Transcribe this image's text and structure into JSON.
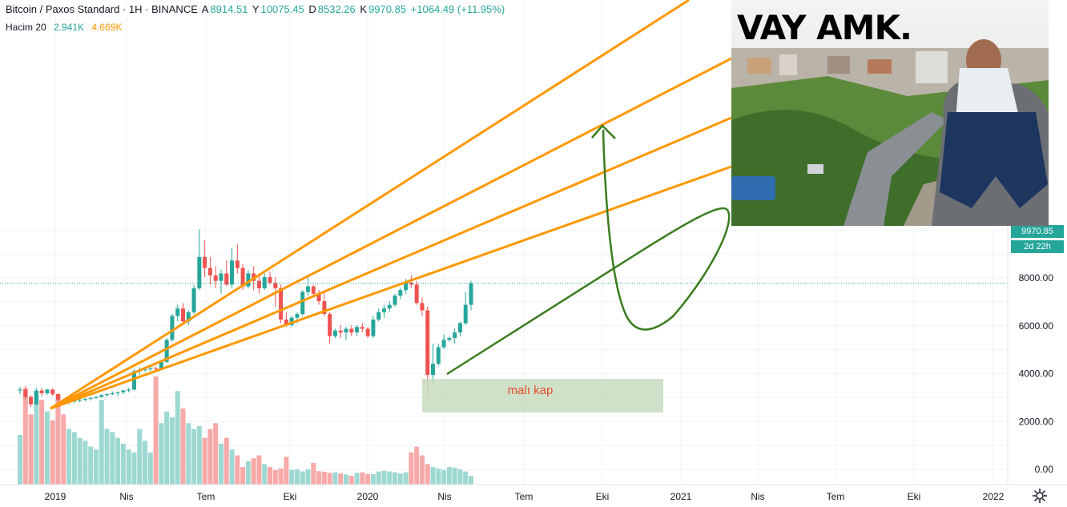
{
  "header": {
    "symbol": "Bitcoin / Paxos Standard · 1H · BINANCE",
    "open_key": "A",
    "open": "8914.51",
    "high_key": "Y",
    "high": "10075.45",
    "low_key": "D",
    "low": "8532.26",
    "close_key": "K",
    "close": "9970.85",
    "change": "+1064.49 (+11.95%)",
    "volume_label": "Hacim 20",
    "volume_value": "2.941K",
    "volume_ma": "4.669K"
  },
  "price_tag": {
    "price": "9970.85",
    "countdown": "2d 22h"
  },
  "annotation": {
    "text": "malı kap"
  },
  "meme": {
    "title": "VAY AMK."
  },
  "colors": {
    "up": "#26a69a",
    "down": "#ef5350",
    "fan": "#ff9800",
    "arrow": "#3a7d1e",
    "box": "#c8dcc0",
    "annotation_text": "#e04c2c"
  },
  "chart_data": {
    "type": "candlestick",
    "title": "Bitcoin / Paxos Standard · 1H · BINANCE",
    "ylim": [
      -700,
      10500
    ],
    "y_ticks": [
      0,
      2000,
      4000,
      6000,
      8000
    ],
    "y_tick_labels": [
      "0.00",
      "2000.00",
      "4000.00",
      "6000.00",
      "8000.00"
    ],
    "x_ticks": [
      "2019",
      "Nis",
      "Tem",
      "Eki",
      "2020",
      "Nis",
      "Tem",
      "Eki",
      "2021",
      "Nis",
      "Tem",
      "Eki",
      "2022"
    ],
    "last_price": 9970.85,
    "candles": [
      [
        4150,
        4350,
        3950,
        4200
      ],
      [
        4200,
        4400,
        3700,
        3800
      ],
      [
        3800,
        3900,
        3250,
        3400
      ],
      [
        3400,
        4300,
        3350,
        4150
      ],
      [
        4150,
        4300,
        3850,
        4000
      ],
      [
        4000,
        4250,
        3900,
        4200
      ],
      [
        4200,
        4250,
        3850,
        3950
      ],
      [
        3950,
        4000,
        3550,
        3650
      ],
      [
        3650,
        3700,
        3400,
        3500
      ],
      [
        3500,
        3650,
        3400,
        3550
      ],
      [
        3550,
        3700,
        3450,
        3600
      ],
      [
        3600,
        3700,
        3500,
        3650
      ],
      [
        3650,
        3750,
        3550,
        3700
      ],
      [
        3700,
        3800,
        3600,
        3750
      ],
      [
        3750,
        3850,
        3700,
        3800
      ],
      [
        3800,
        3950,
        3750,
        3900
      ],
      [
        3900,
        4000,
        3800,
        3950
      ],
      [
        3950,
        4100,
        3900,
        4000
      ],
      [
        4000,
        4100,
        3850,
        4050
      ],
      [
        4050,
        4200,
        3950,
        4150
      ],
      [
        4150,
        4300,
        4050,
        4200
      ],
      [
        4200,
        5300,
        4150,
        5200
      ],
      [
        5200,
        5400,
        5000,
        5250
      ],
      [
        5250,
        5400,
        5150,
        5300
      ],
      [
        5300,
        5450,
        5200,
        5350
      ],
      [
        5350,
        5450,
        5200,
        5300
      ],
      [
        5300,
        5800,
        5250,
        5700
      ],
      [
        5700,
        7000,
        5650,
        6900
      ],
      [
        6900,
        8300,
        6800,
        8200
      ],
      [
        8200,
        8800,
        7900,
        8600
      ],
      [
        8600,
        8900,
        7700,
        7900
      ],
      [
        7900,
        8500,
        7700,
        8400
      ],
      [
        8400,
        9900,
        8300,
        9700
      ],
      [
        9700,
        12900,
        9600,
        11400
      ],
      [
        11400,
        12300,
        10300,
        10800
      ],
      [
        10800,
        11400,
        9900,
        10400
      ],
      [
        10400,
        10900,
        9700,
        10100
      ],
      [
        10100,
        10700,
        9400,
        10500
      ],
      [
        10500,
        11200,
        9800,
        9900
      ],
      [
        9900,
        11900,
        9700,
        11200
      ],
      [
        11200,
        12100,
        10500,
        10800
      ],
      [
        10800,
        11000,
        9600,
        9800
      ],
      [
        9800,
        10700,
        9700,
        10500
      ],
      [
        10500,
        10900,
        9600,
        10100
      ],
      [
        10100,
        10400,
        9400,
        9700
      ],
      [
        9700,
        10500,
        9600,
        10300
      ],
      [
        10300,
        10600,
        9900,
        10000
      ],
      [
        10000,
        10300,
        8700,
        9700
      ],
      [
        9700,
        9900,
        7800,
        8000
      ],
      [
        8000,
        8400,
        7600,
        7700
      ],
      [
        7700,
        8200,
        7600,
        8100
      ],
      [
        8100,
        8400,
        7800,
        8300
      ],
      [
        8300,
        9600,
        8200,
        9500
      ],
      [
        9500,
        10300,
        9300,
        9800
      ],
      [
        9800,
        9900,
        9300,
        9400
      ],
      [
        9400,
        9600,
        8800,
        9000
      ],
      [
        9000,
        9500,
        8200,
        8300
      ],
      [
        8300,
        8400,
        6700,
        7100
      ],
      [
        7100,
        7500,
        7000,
        7400
      ],
      [
        7400,
        7700,
        7000,
        7300
      ],
      [
        7300,
        7600,
        6900,
        7500
      ],
      [
        7500,
        7700,
        7100,
        7300
      ],
      [
        7300,
        7700,
        7100,
        7600
      ],
      [
        7600,
        7800,
        7300,
        7500
      ],
      [
        7500,
        7600,
        7000,
        7100
      ],
      [
        7100,
        8200,
        7000,
        8000
      ],
      [
        8000,
        8600,
        7900,
        8400
      ],
      [
        8400,
        8800,
        8100,
        8600
      ],
      [
        8600,
        9000,
        8400,
        8800
      ],
      [
        8800,
        9400,
        8700,
        9300
      ],
      [
        9300,
        9700,
        9100,
        9600
      ],
      [
        9600,
        10200,
        9400,
        10000
      ],
      [
        10000,
        10400,
        9700,
        9900
      ],
      [
        9900,
        10100,
        8800,
        8900
      ],
      [
        8900,
        9200,
        8200,
        8500
      ],
      [
        8500,
        8700,
        3800,
        5000
      ],
      [
        5000,
        6700,
        4500,
        5600
      ],
      [
        5600,
        6700,
        5500,
        6500
      ],
      [
        6500,
        7200,
        6400,
        6900
      ],
      [
        6900,
        7100,
        6800,
        7000
      ],
      [
        7000,
        7500,
        6700,
        7300
      ],
      [
        7300,
        7900,
        7100,
        7800
      ],
      [
        7800,
        9500,
        7700,
        8800
      ],
      [
        8800,
        10100,
        8500,
        9970
      ]
    ],
    "volumes": [
      1700,
      3300,
      2400,
      3200,
      2900,
      2500,
      2200,
      3100,
      2400,
      1900,
      1800,
      1600,
      1500,
      1300,
      1200,
      2900,
      1900,
      1800,
      1600,
      1400,
      1200,
      1100,
      1900,
      1500,
      1100,
      3700,
      2100,
      2500,
      2300,
      3200,
      2600,
      2100,
      1900,
      2000,
      1600,
      1900,
      2100,
      1400,
      1600,
      1200,
      1000,
      600,
      800,
      900,
      1000,
      700,
      600,
      500,
      550,
      950,
      500,
      520,
      450,
      520,
      740,
      460,
      440,
      400,
      420,
      380,
      350,
      300,
      400,
      420,
      360,
      360,
      450,
      480,
      450,
      420,
      380,
      420,
      1100,
      1300,
      1000,
      700,
      600,
      550,
      500,
      600,
      580,
      520,
      450,
      300
    ]
  }
}
